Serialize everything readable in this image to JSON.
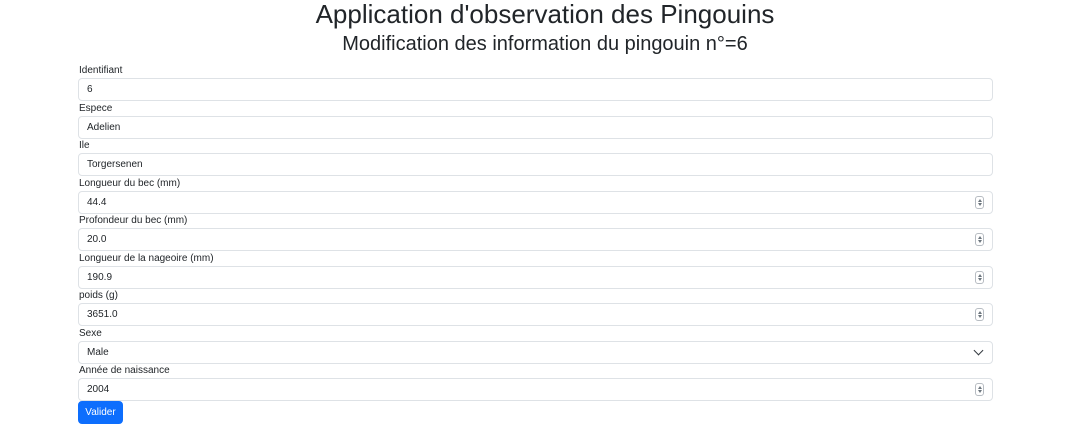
{
  "header": {
    "title": "Application d'observation des Pingouins",
    "subtitle": "Modification des information du pingouin n°=6"
  },
  "form": {
    "fields": [
      {
        "label": "Identifiant",
        "value": "6",
        "type": "text"
      },
      {
        "label": "Espece",
        "value": "Adelien",
        "type": "text"
      },
      {
        "label": "Ile",
        "value": "Torgersenen",
        "type": "text"
      },
      {
        "label": "Longueur du bec (mm)",
        "value": "44.4",
        "type": "number"
      },
      {
        "label": "Profondeur du bec (mm)",
        "value": "20.0",
        "type": "number"
      },
      {
        "label": "Longueur de la nageoire (mm)",
        "value": "190.9",
        "type": "number"
      },
      {
        "label": "poids (g)",
        "value": "3651.0",
        "type": "number"
      },
      {
        "label": "Sexe",
        "value": "Male",
        "type": "select"
      },
      {
        "label": "Année de naissance",
        "value": "2004",
        "type": "number"
      }
    ],
    "submit_label": "Valider"
  },
  "icons": {
    "spinner": "spinner-arrows-icon",
    "select": "chevron-down-icon"
  },
  "colors": {
    "primary": "#0d6efd",
    "border": "#dee2e6",
    "text": "#212529"
  }
}
